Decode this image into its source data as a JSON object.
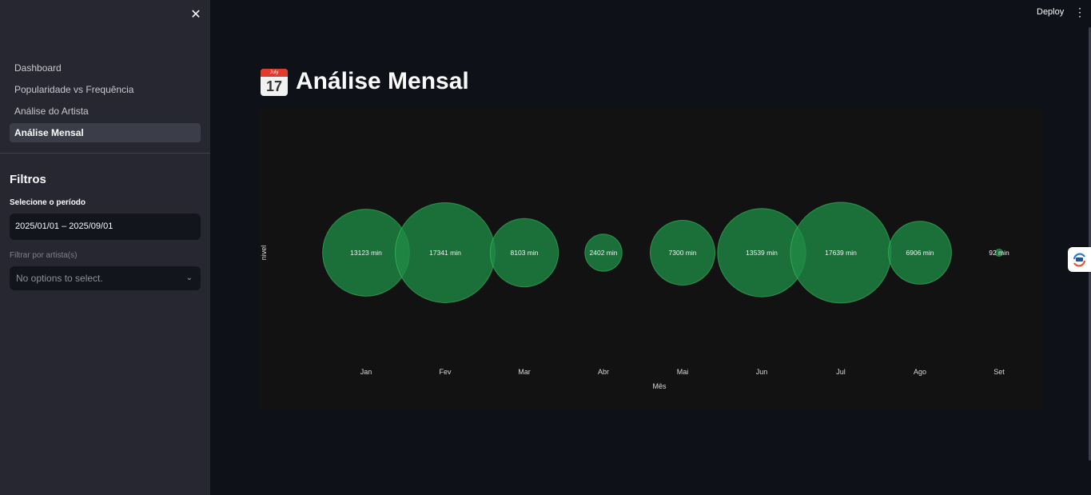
{
  "sidebar": {
    "nav": [
      {
        "label": "Dashboard"
      },
      {
        "label": "Popularidade vs Frequência"
      },
      {
        "label": "Análise do Artista"
      },
      {
        "label": "Análise Mensal"
      }
    ],
    "filters_title": "Filtros",
    "period_label": "Selecione o período",
    "period_value": "2025/01/01 – 2025/09/01",
    "artist_label": "Filtrar por artista(s)",
    "artist_placeholder": "No options to select."
  },
  "header": {
    "deploy_label": "Deploy"
  },
  "title": {
    "text": "Análise Mensal",
    "icon": "calendar-icon",
    "icon_month": "July",
    "icon_day": "17"
  },
  "colors": {
    "bubble": "#1e8b44",
    "bubble_stroke": "#3ecf6e",
    "background": "#0e1117"
  },
  "chart_data": {
    "type": "scatter",
    "xlabel": "Mês",
    "ylabel": "nivel",
    "categories": [
      "Jan",
      "Fev",
      "Mar",
      "Abr",
      "Mai",
      "Jun",
      "Jul",
      "Ago",
      "Set"
    ],
    "values": [
      13123,
      17341,
      8103,
      2402,
      7300,
      13539,
      17639,
      6906,
      92
    ],
    "labels": [
      "13123 min",
      "17341 min",
      "8103 min",
      "2402 min",
      "7300 min",
      "13539 min",
      "17639 min",
      "6906 min",
      "92 min"
    ]
  }
}
